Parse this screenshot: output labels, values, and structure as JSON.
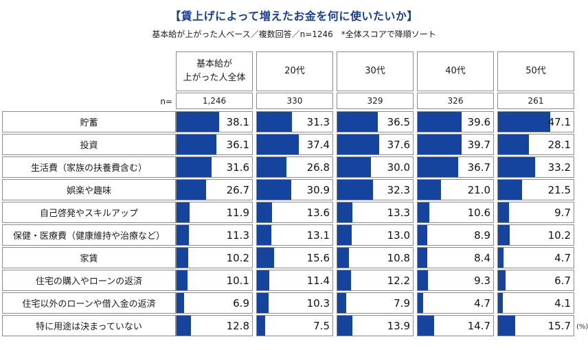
{
  "title": "【賃上げによって増えたお金を何に使いたいか】",
  "subtitle": "基本給が上がった人ベース／複数回答／n=1246　*全体スコアで降順ソート",
  "n_label": "n=",
  "percent_label": "(%)",
  "colors": {
    "bar": "#14449E",
    "title": "#1B3E92",
    "border": "#8A8A8A"
  },
  "chart_data": {
    "type": "bar",
    "orientation": "horizontal",
    "unit": "%",
    "scale_max": 68,
    "categories": [
      "貯蓄",
      "投資",
      "生活費（家族の扶養費含む）",
      "娯楽や趣味",
      "自己啓発やスキルアップ",
      "保健・医療費（健康維持や治療など）",
      "家賃",
      "住宅の購入やローンの返済",
      "住宅以外のローンや借入金の返済",
      "特に用途は決まっていない"
    ],
    "series": [
      {
        "name": "基本給が上がった人全体",
        "name_lines": [
          "基本給が",
          "上がった人全体"
        ],
        "n": "1,246",
        "values": [
          38.1,
          36.1,
          31.6,
          26.7,
          11.9,
          11.3,
          10.2,
          10.1,
          6.9,
          12.8
        ]
      },
      {
        "name": "20代",
        "n": "330",
        "values": [
          31.3,
          37.4,
          26.8,
          30.9,
          13.6,
          13.1,
          15.6,
          11.4,
          10.3,
          7.5
        ]
      },
      {
        "name": "30代",
        "n": "329",
        "values": [
          36.5,
          37.6,
          30.0,
          32.3,
          13.3,
          13.0,
          10.8,
          12.2,
          7.9,
          13.9
        ]
      },
      {
        "name": "40代",
        "n": "326",
        "values": [
          39.6,
          39.7,
          36.7,
          21.0,
          10.6,
          8.9,
          8.4,
          9.3,
          4.7,
          14.7
        ]
      },
      {
        "name": "50代",
        "n": "261",
        "values": [
          47.1,
          28.1,
          33.2,
          21.5,
          9.7,
          10.2,
          4.7,
          6.7,
          4.1,
          15.7
        ]
      }
    ]
  }
}
